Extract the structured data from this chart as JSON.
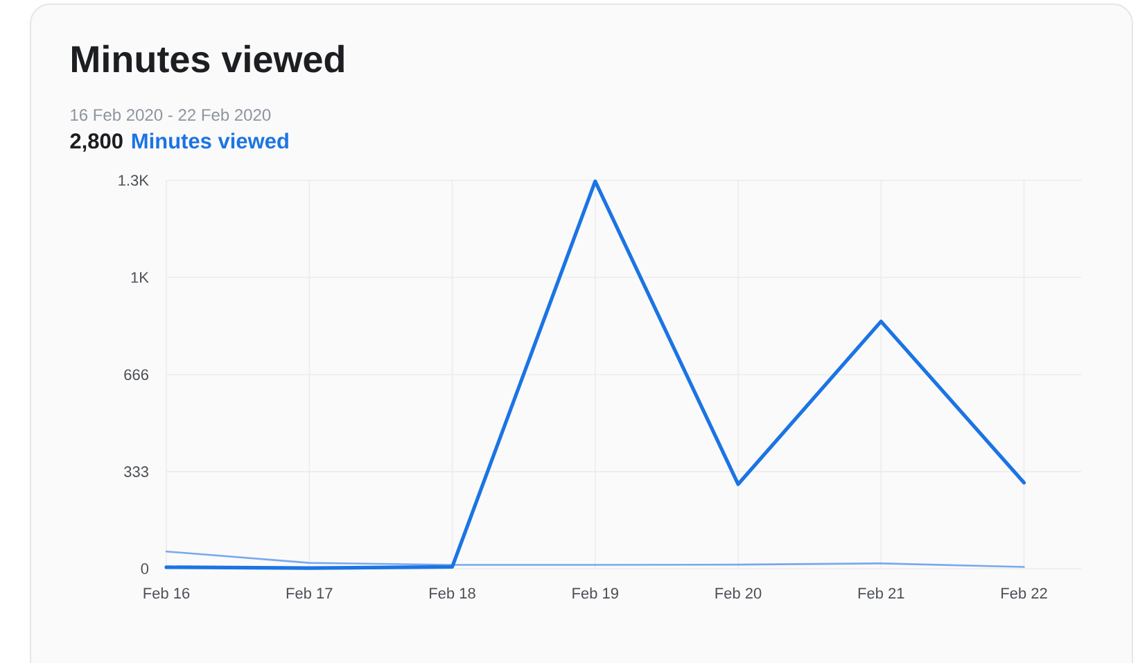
{
  "chart_data": {
    "type": "line",
    "title": "Minutes viewed",
    "subtitle": "16 Feb 2020 - 22 Feb 2020",
    "annotations": [
      "2,800"
    ],
    "categories": [
      "Feb 16",
      "Feb 17",
      "Feb 18",
      "Feb 19",
      "Feb 20",
      "Feb 21",
      "Feb 22"
    ],
    "series": [
      {
        "name": "Minutes viewed",
        "color": "#1b74e4",
        "values": [
          5,
          2,
          6,
          1330,
          290,
          849,
          295
        ]
      },
      {
        "color": "#78a9ef",
        "values": [
          59,
          20,
          13,
          13,
          14,
          18,
          6
        ]
      }
    ],
    "ylim": [
      0,
      1333.3
    ],
    "yticks": [
      0,
      333,
      666,
      {
        "value": 1000,
        "label": "1K"
      },
      {
        "value": 1333.3,
        "label": "1.3K"
      }
    ],
    "grid": true,
    "marker": "none",
    "line_style": "solid"
  }
}
